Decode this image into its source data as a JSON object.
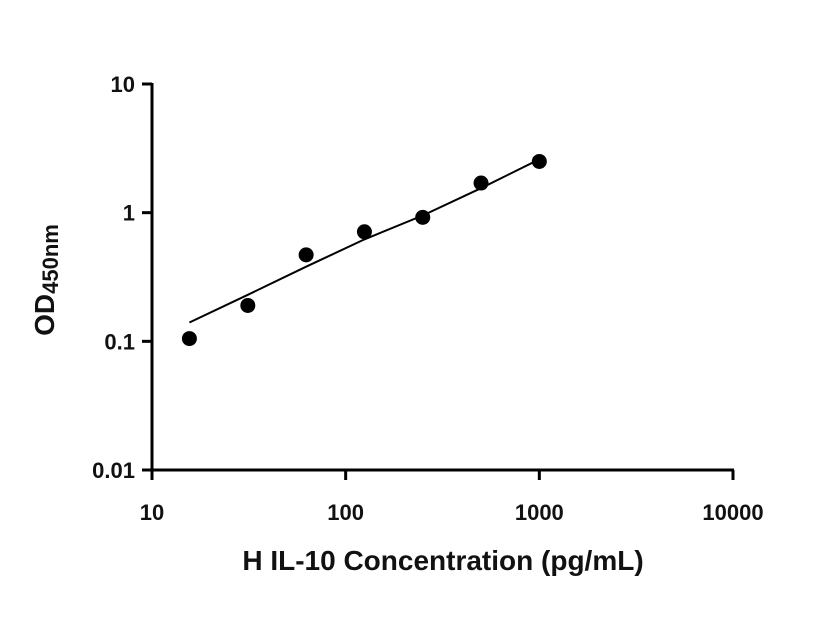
{
  "chart_data": {
    "type": "scatter",
    "xscale": "log",
    "yscale": "log",
    "xlim": [
      10,
      10000
    ],
    "ylim": [
      0.01,
      10
    ],
    "xticks": [
      "10",
      "100",
      "1000",
      "10000"
    ],
    "yticks": [
      "0.01",
      "0.1",
      "1",
      "10"
    ],
    "xlabel": "H IL-10 Concentration (pg/mL)",
    "ylabel_main": "OD",
    "ylabel_sub": "450nm",
    "grid": false,
    "series": [
      {
        "x": [
          15.6,
          31.25,
          62.5,
          125,
          250,
          500,
          1000
        ],
        "y": [
          0.105,
          0.19,
          0.47,
          0.71,
          0.92,
          1.7,
          2.5
        ]
      }
    ],
    "fit_curve": {
      "x": [
        15.6,
        31.25,
        62.5,
        125,
        250,
        500,
        1000
      ],
      "y": [
        0.14,
        0.23,
        0.38,
        0.62,
        0.95,
        1.55,
        2.6
      ]
    }
  }
}
